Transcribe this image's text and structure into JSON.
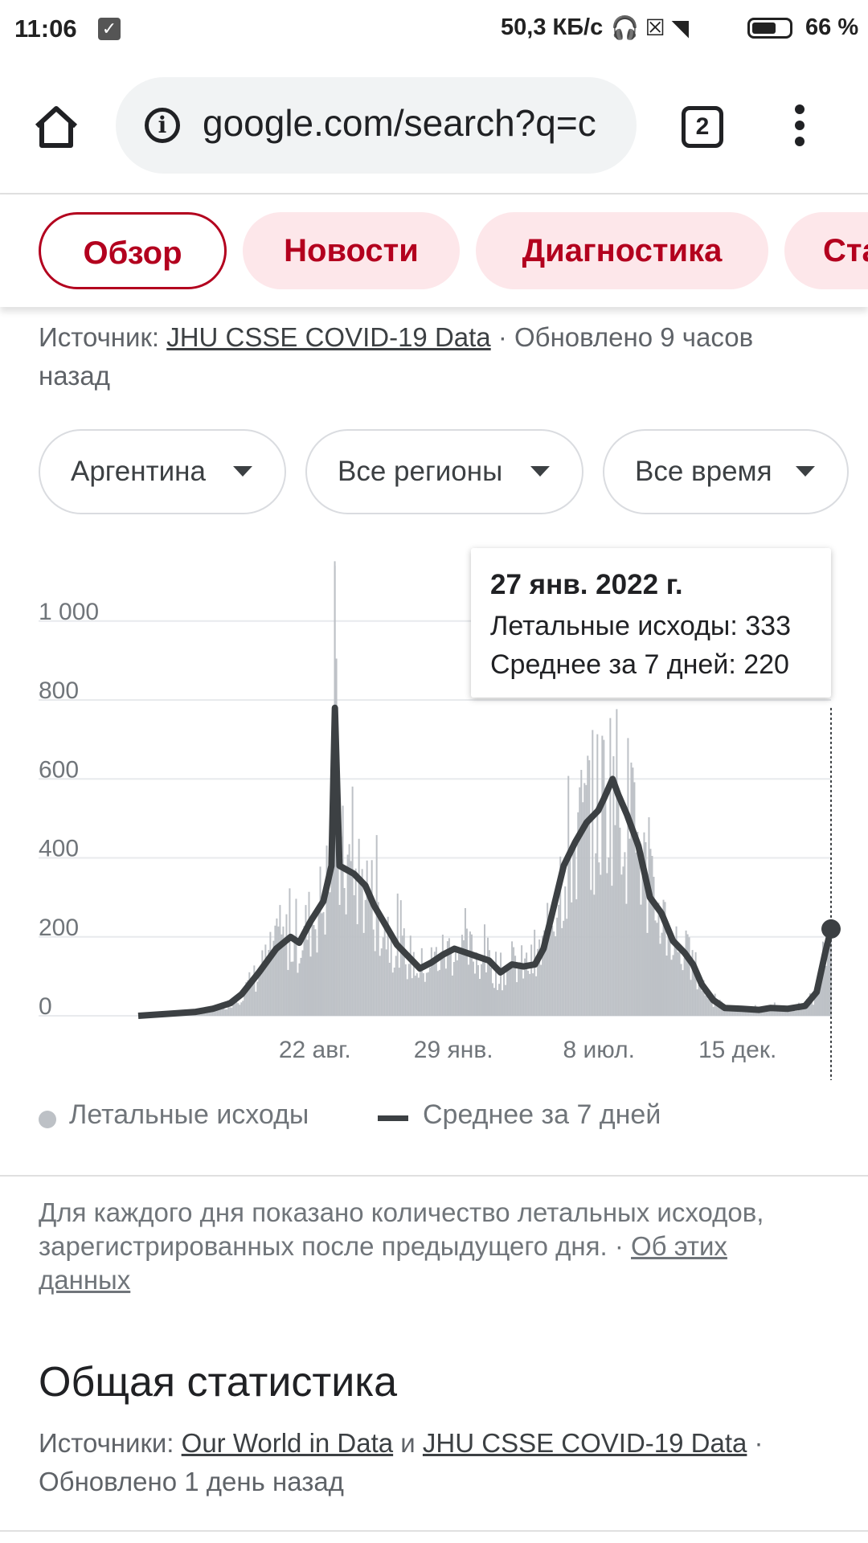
{
  "status_bar": {
    "time": "11:06",
    "net_speed": "50,3 КБ/с",
    "battery_pct": "66 %",
    "battery_level": 0.66
  },
  "browser": {
    "url": "google.com/search?q=c",
    "tab_count": "2"
  },
  "chips": [
    "Обзор",
    "Новости",
    "Диагностика",
    "Ста"
  ],
  "source": {
    "prefix": "Источник: ",
    "link": "JHU CSSE COVID-19 Data",
    "updated": " · Обновлено 9 часов назад"
  },
  "filters": {
    "country": "Аргентина",
    "region": "Все регионы",
    "period": "Все время"
  },
  "tooltip": {
    "date": "27 янв. 2022 г.",
    "deaths": "Летальные исходы: 333",
    "avg": "Среднее за 7 дней: 220"
  },
  "chart_data": {
    "type": "bar",
    "y_ticks": [
      "1 000",
      "800",
      "600",
      "400",
      "200",
      "0"
    ],
    "y_tick_values": [
      1000,
      800,
      600,
      400,
      200,
      0
    ],
    "ylim": [
      0,
      1140
    ],
    "x_ticks": [
      "22 авг.",
      "29 янв.",
      "8 июл.",
      "15 дек."
    ],
    "series": [
      {
        "name": "Летальные исходы",
        "color": "#bdc1c6"
      },
      {
        "name": "Среднее за 7 дней",
        "color": "#3c4043"
      }
    ],
    "avg_points": [
      [
        0.0,
        0
      ],
      [
        0.06,
        6
      ],
      [
        0.1,
        10
      ],
      [
        0.13,
        18
      ],
      [
        0.16,
        32
      ],
      [
        0.18,
        55
      ],
      [
        0.21,
        110
      ],
      [
        0.24,
        170
      ],
      [
        0.265,
        200
      ],
      [
        0.28,
        185
      ],
      [
        0.3,
        240
      ],
      [
        0.322,
        290
      ],
      [
        0.336,
        380
      ],
      [
        0.342,
        780
      ],
      [
        0.35,
        380
      ],
      [
        0.375,
        360
      ],
      [
        0.395,
        330
      ],
      [
        0.41,
        280
      ],
      [
        0.43,
        230
      ],
      [
        0.45,
        180
      ],
      [
        0.47,
        150
      ],
      [
        0.49,
        120
      ],
      [
        0.51,
        135
      ],
      [
        0.53,
        155
      ],
      [
        0.55,
        170
      ],
      [
        0.57,
        160
      ],
      [
        0.59,
        150
      ],
      [
        0.61,
        140
      ],
      [
        0.63,
        110
      ],
      [
        0.65,
        130
      ],
      [
        0.67,
        125
      ],
      [
        0.69,
        130
      ],
      [
        0.705,
        170
      ],
      [
        0.72,
        260
      ],
      [
        0.74,
        380
      ],
      [
        0.76,
        440
      ],
      [
        0.78,
        490
      ],
      [
        0.8,
        520
      ],
      [
        0.81,
        550
      ],
      [
        0.825,
        600
      ],
      [
        0.835,
        560
      ],
      [
        0.85,
        510
      ],
      [
        0.87,
        430
      ],
      [
        0.89,
        300
      ],
      [
        0.91,
        260
      ],
      [
        0.93,
        190
      ],
      [
        0.95,
        160
      ],
      [
        0.965,
        130
      ],
      [
        0.98,
        80
      ],
      [
        1.0,
        40
      ],
      [
        1.02,
        20
      ],
      [
        1.05,
        18
      ],
      [
        1.08,
        15
      ],
      [
        1.1,
        20
      ],
      [
        1.13,
        18
      ],
      [
        1.16,
        25
      ],
      [
        1.18,
        60
      ],
      [
        1.195,
        160
      ],
      [
        1.205,
        220
      ]
    ],
    "highlight": {
      "label": "27 янв. 2022 г.",
      "deaths": 333,
      "avg": 220
    }
  },
  "legend": {
    "deaths": "Летальные исходы",
    "avg": "Среднее за 7 дней"
  },
  "note": {
    "text": "Для каждого дня показано количество летальных исходов, зарегистрированных после предыдущего дня.",
    "sep": " · ",
    "link": "Об этих данных"
  },
  "stats": {
    "title": "Общая статистика",
    "prefix": "Источники: ",
    "link1": "Our World in Data",
    "and": " и ",
    "link2": "JHU CSSE COVID-19 Data",
    "updated": " · Обновлено 1 день назад"
  }
}
